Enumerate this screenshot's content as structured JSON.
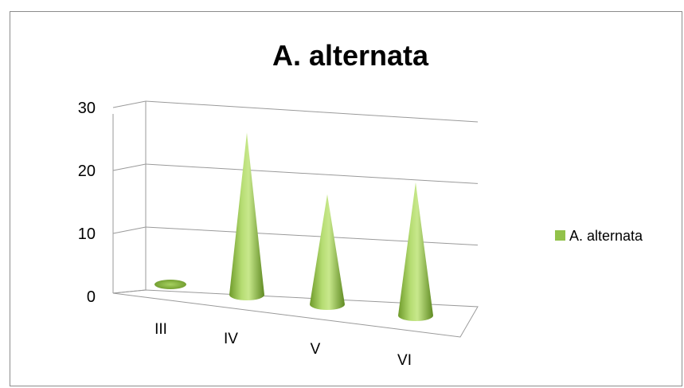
{
  "chart_data": {
    "type": "bar",
    "style": "3d-cone",
    "title": "A. alternata",
    "xlabel": "",
    "ylabel": "",
    "categories": [
      "III",
      "IV",
      "V",
      "VI"
    ],
    "series": [
      {
        "name": "A. alternata",
        "values": [
          0,
          28,
          19,
          23
        ],
        "color": "#92c24a"
      }
    ],
    "ylim": [
      0,
      30
    ],
    "yticks": [
      0,
      10,
      20,
      30
    ],
    "grid": true,
    "legend": "right"
  }
}
